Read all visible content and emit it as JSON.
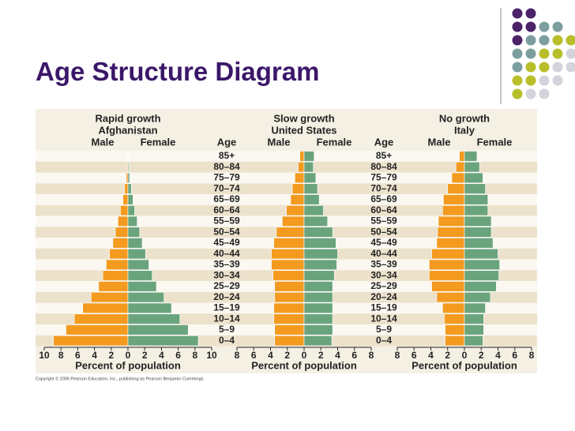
{
  "title": "Age Structure Diagram",
  "footnote": "Copyright © 2006 Pearson Education, Inc., publishing as Pearson Benjamin Cummings.",
  "chart_data": [
    {
      "type": "pyramid",
      "title": "Rapid growth",
      "subtitle": "Afghanistan",
      "xlabel": "Percent of population",
      "xlim": [
        -10,
        10
      ],
      "xticks": [
        {
          "value": -10,
          "label": "10"
        },
        {
          "value": -8,
          "label": "8"
        },
        {
          "value": -6,
          "label": "6"
        },
        {
          "value": -4,
          "label": "4"
        },
        {
          "value": -2,
          "label": "2"
        },
        0,
        2,
        4,
        6,
        8,
        10
      ],
      "series": [
        {
          "name": "Male",
          "color": "#f39a1f",
          "values": [
            8.9,
            7.4,
            6.4,
            5.4,
            4.4,
            3.5,
            3.0,
            2.6,
            2.2,
            1.8,
            1.5,
            1.2,
            0.9,
            0.6,
            0.4,
            0.2,
            0.1,
            0.05
          ]
        },
        {
          "name": "Female",
          "color": "#6aa47c",
          "values": [
            8.4,
            7.2,
            6.2,
            5.2,
            4.3,
            3.4,
            2.9,
            2.5,
            2.1,
            1.7,
            1.4,
            1.1,
            0.8,
            0.6,
            0.4,
            0.2,
            0.1,
            0.05
          ]
        }
      ]
    },
    {
      "type": "pyramid",
      "title": "Slow growth",
      "subtitle": "United States",
      "xlabel": "Percent of population",
      "ylabel": "Age",
      "categories": [
        "0–4",
        "5–9",
        "10–14",
        "15–19",
        "20–24",
        "25–29",
        "30–34",
        "35–39",
        "40–44",
        "45–49",
        "50–54",
        "55–59",
        "60–64",
        "65–69",
        "70–74",
        "75–79",
        "80–84",
        "85+"
      ],
      "xlim": [
        -8,
        8
      ],
      "xticks": [
        {
          "value": -8,
          "label": "8"
        },
        {
          "value": -6,
          "label": "6"
        },
        {
          "value": -4,
          "label": "4"
        },
        {
          "value": -2,
          "label": "2"
        },
        0,
        2,
        4,
        6,
        8
      ],
      "series": [
        {
          "name": "Male",
          "color": "#f39a1f",
          "values": [
            3.5,
            3.5,
            3.6,
            3.6,
            3.5,
            3.5,
            3.7,
            3.9,
            3.9,
            3.6,
            3.3,
            2.6,
            2.1,
            1.6,
            1.4,
            1.1,
            0.7,
            0.5
          ]
        },
        {
          "name": "Female",
          "color": "#6aa47c",
          "values": [
            3.3,
            3.4,
            3.4,
            3.4,
            3.4,
            3.4,
            3.6,
            3.9,
            4.0,
            3.8,
            3.4,
            2.8,
            2.3,
            1.8,
            1.6,
            1.4,
            1.1,
            1.2
          ]
        }
      ]
    },
    {
      "type": "pyramid",
      "title": "No growth",
      "subtitle": "Italy",
      "xlabel": "Percent of population",
      "ylabel": "Age",
      "categories": [
        "0–4",
        "5–9",
        "10–14",
        "15–19",
        "20–24",
        "25–29",
        "30–34",
        "35–39",
        "40–44",
        "45–49",
        "50–54",
        "55–59",
        "60–64",
        "65–69",
        "70–74",
        "75–79",
        "80–84",
        "85+"
      ],
      "xlim": [
        -8,
        8
      ],
      "xticks": [
        {
          "value": -8,
          "label": "8"
        },
        {
          "value": -6,
          "label": "6"
        },
        {
          "value": -4,
          "label": "4"
        },
        {
          "value": -2,
          "label": "2"
        },
        0,
        2,
        4,
        6,
        8
      ],
      "series": [
        {
          "name": "Male",
          "color": "#f39a1f",
          "values": [
            2.3,
            2.3,
            2.4,
            2.6,
            3.3,
            3.9,
            4.2,
            4.2,
            3.9,
            3.3,
            3.2,
            3.1,
            2.6,
            2.5,
            2.0,
            1.5,
            1.0,
            0.6
          ]
        },
        {
          "name": "Female",
          "color": "#6aa47c",
          "values": [
            2.2,
            2.3,
            2.3,
            2.5,
            3.1,
            3.8,
            4.1,
            4.2,
            4.0,
            3.4,
            3.2,
            3.2,
            2.8,
            2.8,
            2.5,
            2.2,
            1.8,
            1.5
          ]
        }
      ]
    }
  ]
}
